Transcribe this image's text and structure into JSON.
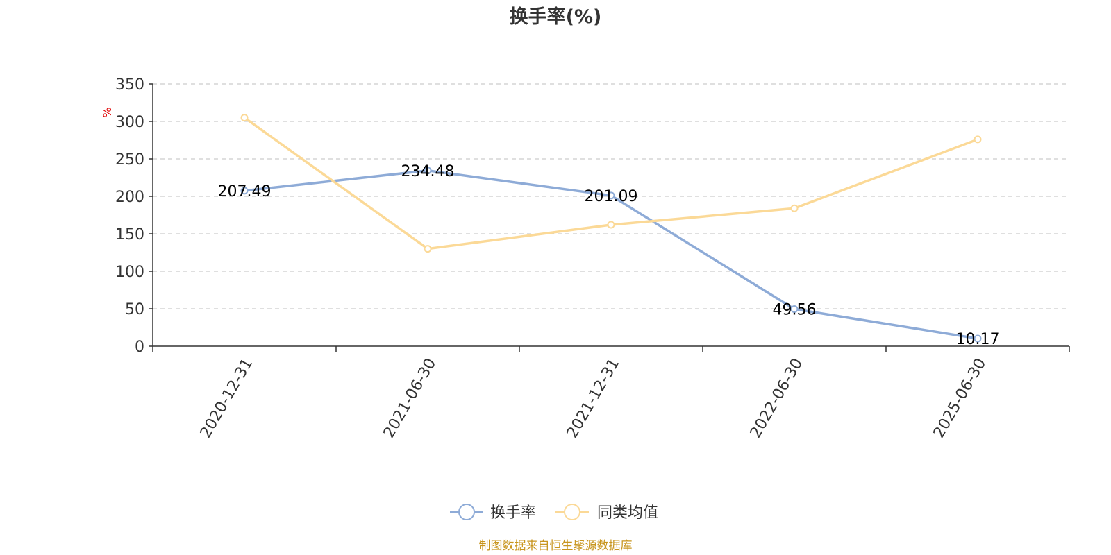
{
  "chart_data": {
    "type": "line",
    "title": "换手率(%)",
    "ylabel": "%",
    "xlabel": "",
    "categories": [
      "2020-12-31",
      "2021-06-30",
      "2021-12-31",
      "2022-06-30",
      "2025-06-30"
    ],
    "ylim": [
      0,
      350
    ],
    "yticks": [
      0,
      50,
      100,
      150,
      200,
      250,
      300,
      350
    ],
    "grid": true,
    "legend_position": "bottom-center",
    "series": [
      {
        "name": "换手率",
        "color": "#8eabd7",
        "values": [
          207.49,
          234.48,
          201.09,
          49.56,
          10.17
        ],
        "data_labels": [
          "207.49",
          "234.48",
          "201.09",
          "49.56",
          "10.17"
        ]
      },
      {
        "name": "同类均值",
        "color": "#fbd997",
        "values": [
          305,
          130,
          162,
          184,
          276
        ]
      }
    ]
  },
  "source_text": "制图数据来自恒生聚源数据库"
}
